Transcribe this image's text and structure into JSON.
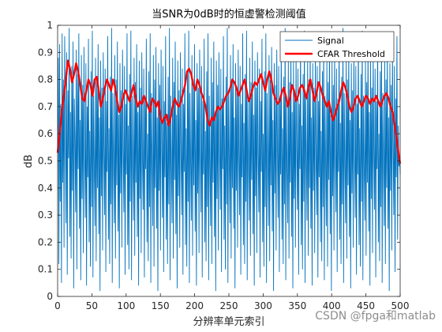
{
  "chart_data": {
    "type": "line",
    "title": "当SNR为0dB时的恒虚警检测阈值",
    "xlabel": "分辨率单元索引",
    "ylabel": "dB",
    "xlim": [
      0,
      500
    ],
    "ylim": [
      0,
      1
    ],
    "xticks": [
      "0",
      "50",
      "100",
      "150",
      "200",
      "250",
      "300",
      "350",
      "400",
      "450",
      "500"
    ],
    "yticks": [
      "0",
      "0.1",
      "0.2",
      "0.3",
      "0.4",
      "0.5",
      "0.6",
      "0.7",
      "0.8",
      "0.9",
      "1"
    ],
    "grid": false,
    "legend_position": "top-right",
    "series": [
      {
        "name": "Signal",
        "color": "#0072BD",
        "style": "noisy-random-uniform-0-1",
        "values": [
          0.55,
          0.88,
          0.12,
          0.93,
          0.35,
          0.71,
          0.05,
          0.97,
          0.42,
          0.8,
          0.18,
          0.96,
          0.63,
          0.27,
          0.9,
          0.08,
          0.76,
          0.51,
          0.99,
          0.22,
          0.68,
          0.14,
          0.85,
          0.39,
          0.94,
          0.03,
          0.73,
          0.58,
          0.31,
          0.91,
          0.1,
          0.82,
          0.47,
          0.97,
          0.25,
          0.65,
          0.06,
          0.89,
          0.36,
          0.78,
          0.16,
          0.92,
          0.53,
          0.29,
          0.86,
          0.04,
          0.7,
          0.44,
          0.95,
          0.2,
          0.61,
          0.11,
          0.83,
          0.33,
          0.98,
          0.07,
          0.74,
          0.49,
          0.26,
          0.88,
          0.13,
          0.79,
          0.4,
          0.93,
          0.23,
          0.66,
          0.02,
          0.87,
          0.37,
          0.77,
          0.17,
          0.9,
          0.54,
          0.3,
          0.84,
          0.09,
          0.72,
          0.46,
          0.96,
          0.21,
          0.62,
          0.12,
          0.81,
          0.34,
          0.99,
          0.05,
          0.75,
          0.5,
          0.27,
          0.89,
          0.14,
          0.8,
          0.41,
          0.94,
          0.24,
          0.67,
          0.03,
          0.86,
          0.38,
          0.76,
          0.18,
          0.91,
          0.55,
          0.31,
          0.85,
          0.08,
          0.71,
          0.45,
          0.97,
          0.19,
          0.63,
          0.1,
          0.82,
          0.35,
          0.98,
          0.06,
          0.74,
          0.48,
          0.28,
          0.88,
          0.15,
          0.79,
          0.42,
          0.93,
          0.22,
          0.68,
          0.04,
          0.87,
          0.36,
          0.77,
          0.16,
          0.9,
          0.52,
          0.32,
          0.84,
          0.07,
          0.73,
          0.47,
          0.95,
          0.2,
          0.6,
          0.13,
          0.83,
          0.33,
          0.97,
          0.05,
          0.75,
          0.51,
          0.26,
          0.89,
          0.11,
          0.8,
          0.4,
          0.92,
          0.25,
          0.66,
          0.02,
          0.86,
          0.39,
          0.78,
          0.17,
          0.91,
          0.56,
          0.29,
          0.85,
          0.09,
          0.72,
          0.44,
          0.96,
          0.21,
          0.64,
          0.12,
          0.81,
          0.34,
          0.99,
          0.06,
          0.74,
          0.49,
          0.27,
          0.88,
          0.14,
          0.79,
          0.43,
          0.94,
          0.23,
          0.67,
          0.03,
          0.87,
          0.37,
          0.76,
          0.18,
          0.9,
          0.53,
          0.3,
          0.84,
          0.08,
          0.71,
          0.46,
          0.97,
          0.19,
          0.62,
          0.11,
          0.82,
          0.35,
          0.98,
          0.05,
          0.75,
          0.5,
          0.28,
          0.89,
          0.15,
          0.8,
          0.41,
          0.93,
          0.24,
          0.65,
          0.04,
          0.86,
          0.38,
          0.77,
          0.16,
          0.91,
          0.54,
          0.31,
          0.85,
          0.07,
          0.72,
          0.45,
          0.95,
          0.2,
          0.61,
          0.13,
          0.83,
          0.33,
          0.97,
          0.06,
          0.74,
          0.48,
          0.26,
          0.88,
          0.12,
          0.79,
          0.42,
          0.94,
          0.22,
          0.68,
          0.02,
          0.87,
          0.36,
          0.78,
          0.17,
          0.9,
          0.55,
          0.32,
          0.84,
          0.09,
          0.73,
          0.47,
          0.96,
          0.21,
          0.63,
          0.1,
          0.81,
          0.34,
          0.99,
          0.05,
          0.75,
          0.51,
          0.27,
          0.89,
          0.14,
          0.8,
          0.4,
          0.93,
          0.25,
          0.66,
          0.03,
          0.86,
          0.39,
          0.76,
          0.18,
          0.91,
          0.52,
          0.3,
          0.85,
          0.08,
          0.71,
          0.44,
          0.97,
          0.19,
          0.64,
          0.12,
          0.82,
          0.35,
          0.98,
          0.06,
          0.74,
          0.49,
          0.28,
          0.88,
          0.15,
          0.79,
          0.43,
          0.94,
          0.23,
          0.67,
          0.04,
          0.87,
          0.37,
          0.77,
          0.16,
          0.9,
          0.53,
          0.31,
          0.84,
          0.07,
          0.72,
          0.46,
          0.95,
          0.2,
          0.6,
          0.11,
          0.83,
          0.33,
          0.97,
          0.05,
          0.75,
          0.5,
          0.26,
          0.89,
          0.13,
          0.8,
          0.41,
          0.92,
          0.24,
          0.65,
          0.02,
          0.86,
          0.38,
          0.78,
          0.17,
          0.91,
          0.56,
          0.29,
          0.85,
          0.09,
          0.73,
          0.45,
          0.96,
          0.21,
          0.62,
          0.12,
          0.81,
          0.34,
          0.99,
          0.06,
          0.74,
          0.48,
          0.27,
          0.88,
          0.14,
          0.79,
          0.42,
          0.93,
          0.22,
          0.68,
          0.03,
          0.87,
          0.36,
          0.76,
          0.18,
          0.9,
          0.54,
          0.32,
          0.84,
          0.08,
          0.71,
          0.47,
          0.97,
          0.19,
          0.63,
          0.1,
          0.82,
          0.35,
          0.98,
          0.05,
          0.75,
          0.51,
          0.28,
          0.89,
          0.15,
          0.8,
          0.4,
          0.94,
          0.25,
          0.66,
          0.04,
          0.86,
          0.39,
          0.77,
          0.16,
          0.91,
          0.52,
          0.3,
          0.85,
          0.07,
          0.72,
          0.44,
          0.95,
          0.2,
          0.61,
          0.13,
          0.83,
          0.33,
          0.97,
          0.06,
          0.74,
          0.49,
          0.26,
          0.88,
          0.11,
          0.79,
          0.43,
          0.94,
          0.23,
          0.67,
          0.02,
          0.87,
          0.37,
          0.78,
          0.17,
          0.9,
          0.55,
          0.31,
          0.84,
          0.09,
          0.73,
          0.46,
          0.96,
          0.21,
          0.64,
          0.12,
          0.81,
          0.34,
          0.99,
          0.05,
          0.75,
          0.5,
          0.27,
          0.89,
          0.14,
          0.8,
          0.41,
          0.93,
          0.22,
          0.65,
          0.03,
          0.86,
          0.38,
          0.76,
          0.18,
          0.91,
          0.53,
          0.29,
          0.85,
          0.08,
          0.71,
          0.45,
          0.97,
          0.19,
          0.62,
          0.11,
          0.82,
          0.35,
          0.98,
          0.06,
          0.74,
          0.48,
          0.28,
          0.88,
          0.15,
          0.79,
          0.42,
          0.94,
          0.24,
          0.68,
          0.04,
          0.87,
          0.36,
          0.77,
          0.16,
          0.9,
          0.54,
          0.32,
          0.84,
          0.07,
          0.72,
          0.47,
          0.95,
          0.2,
          0.6,
          0.13,
          0.83,
          0.33,
          0.97,
          0.05,
          0.75,
          0.51,
          0.26,
          0.89,
          0.12,
          0.8,
          0.4,
          0.92,
          0.25,
          0.66,
          0.02,
          0.86,
          0.39,
          0.78,
          0.17,
          0.91,
          0.56,
          0.3,
          0.85,
          0.09,
          0.73,
          0.44,
          0.96,
          0.21,
          0.63,
          0.48,
          0.52,
          0.45
        ]
      },
      {
        "name": "CFAR Threshold",
        "color": "#FF0000",
        "points": [
          [
            0,
            0.53
          ],
          [
            3,
            0.6
          ],
          [
            6,
            0.68
          ],
          [
            9,
            0.74
          ],
          [
            12,
            0.8
          ],
          [
            15,
            0.87
          ],
          [
            18,
            0.84
          ],
          [
            21,
            0.79
          ],
          [
            24,
            0.82
          ],
          [
            27,
            0.86
          ],
          [
            30,
            0.83
          ],
          [
            33,
            0.78
          ],
          [
            36,
            0.73
          ],
          [
            39,
            0.72
          ],
          [
            42,
            0.76
          ],
          [
            45,
            0.8
          ],
          [
            48,
            0.78
          ],
          [
            51,
            0.74
          ],
          [
            54,
            0.8
          ],
          [
            57,
            0.81
          ],
          [
            60,
            0.76
          ],
          [
            63,
            0.7
          ],
          [
            66,
            0.73
          ],
          [
            69,
            0.77
          ],
          [
            72,
            0.8
          ],
          [
            75,
            0.78
          ],
          [
            78,
            0.76
          ],
          [
            81,
            0.8
          ],
          [
            84,
            0.77
          ],
          [
            87,
            0.72
          ],
          [
            90,
            0.68
          ],
          [
            93,
            0.7
          ],
          [
            96,
            0.74
          ],
          [
            99,
            0.76
          ],
          [
            102,
            0.74
          ],
          [
            105,
            0.72
          ],
          [
            108,
            0.75
          ],
          [
            111,
            0.78
          ],
          [
            114,
            0.73
          ],
          [
            117,
            0.7
          ],
          [
            120,
            0.72
          ],
          [
            123,
            0.71
          ],
          [
            126,
            0.74
          ],
          [
            129,
            0.72
          ],
          [
            132,
            0.7
          ],
          [
            135,
            0.68
          ],
          [
            138,
            0.73
          ],
          [
            141,
            0.72
          ],
          [
            144,
            0.7
          ],
          [
            147,
            0.72
          ],
          [
            150,
            0.66
          ],
          [
            153,
            0.64
          ],
          [
            156,
            0.66
          ],
          [
            159,
            0.67
          ],
          [
            162,
            0.63
          ],
          [
            165,
            0.66
          ],
          [
            168,
            0.7
          ],
          [
            171,
            0.73
          ],
          [
            174,
            0.71
          ],
          [
            177,
            0.7
          ],
          [
            180,
            0.72
          ],
          [
            183,
            0.75
          ],
          [
            186,
            0.78
          ],
          [
            189,
            0.83
          ],
          [
            192,
            0.84
          ],
          [
            195,
            0.82
          ],
          [
            198,
            0.78
          ],
          [
            201,
            0.76
          ],
          [
            204,
            0.8
          ],
          [
            207,
            0.78
          ],
          [
            210,
            0.75
          ],
          [
            213,
            0.73
          ],
          [
            216,
            0.7
          ],
          [
            219,
            0.65
          ],
          [
            222,
            0.63
          ],
          [
            225,
            0.66
          ],
          [
            228,
            0.65
          ],
          [
            231,
            0.68
          ],
          [
            234,
            0.7
          ],
          [
            237,
            0.69
          ],
          [
            240,
            0.7
          ],
          [
            243,
            0.72
          ],
          [
            246,
            0.74
          ],
          [
            249,
            0.75
          ],
          [
            252,
            0.77
          ],
          [
            255,
            0.8
          ],
          [
            258,
            0.79
          ],
          [
            261,
            0.77
          ],
          [
            264,
            0.74
          ],
          [
            267,
            0.76
          ],
          [
            270,
            0.78
          ],
          [
            273,
            0.8
          ],
          [
            276,
            0.76
          ],
          [
            279,
            0.72
          ],
          [
            282,
            0.74
          ],
          [
            285,
            0.77
          ],
          [
            288,
            0.79
          ],
          [
            291,
            0.78
          ],
          [
            294,
            0.8
          ],
          [
            297,
            0.82
          ],
          [
            300,
            0.79
          ],
          [
            303,
            0.76
          ],
          [
            306,
            0.8
          ],
          [
            309,
            0.83
          ],
          [
            312,
            0.8
          ],
          [
            315,
            0.75
          ],
          [
            318,
            0.73
          ],
          [
            321,
            0.71
          ],
          [
            324,
            0.72
          ],
          [
            327,
            0.75
          ],
          [
            330,
            0.77
          ],
          [
            333,
            0.74
          ],
          [
            336,
            0.7
          ],
          [
            339,
            0.73
          ],
          [
            342,
            0.78
          ],
          [
            345,
            0.76
          ],
          [
            348,
            0.72
          ],
          [
            351,
            0.74
          ],
          [
            354,
            0.77
          ],
          [
            357,
            0.78
          ],
          [
            360,
            0.76
          ],
          [
            363,
            0.73
          ],
          [
            366,
            0.77
          ],
          [
            369,
            0.8
          ],
          [
            372,
            0.76
          ],
          [
            375,
            0.72
          ],
          [
            378,
            0.75
          ],
          [
            381,
            0.79
          ],
          [
            384,
            0.77
          ],
          [
            387,
            0.74
          ],
          [
            390,
            0.72
          ],
          [
            393,
            0.7
          ],
          [
            396,
            0.72
          ],
          [
            399,
            0.68
          ],
          [
            402,
            0.65
          ],
          [
            405,
            0.67
          ],
          [
            408,
            0.7
          ],
          [
            411,
            0.72
          ],
          [
            414,
            0.76
          ],
          [
            417,
            0.79
          ],
          [
            420,
            0.77
          ],
          [
            423,
            0.74
          ],
          [
            426,
            0.7
          ],
          [
            429,
            0.68
          ],
          [
            432,
            0.7
          ],
          [
            435,
            0.73
          ],
          [
            438,
            0.74
          ],
          [
            441,
            0.72
          ],
          [
            444,
            0.7
          ],
          [
            447,
            0.72
          ],
          [
            450,
            0.74
          ],
          [
            453,
            0.73
          ],
          [
            456,
            0.71
          ],
          [
            459,
            0.73
          ],
          [
            462,
            0.72
          ],
          [
            465,
            0.74
          ],
          [
            468,
            0.72
          ],
          [
            471,
            0.7
          ],
          [
            474,
            0.72
          ],
          [
            477,
            0.74
          ],
          [
            480,
            0.75
          ],
          [
            483,
            0.73
          ],
          [
            486,
            0.7
          ],
          [
            489,
            0.68
          ],
          [
            492,
            0.63
          ],
          [
            495,
            0.58
          ],
          [
            498,
            0.52
          ],
          [
            500,
            0.49
          ]
        ]
      }
    ]
  },
  "watermark": "CSDN @fpga和matlab"
}
